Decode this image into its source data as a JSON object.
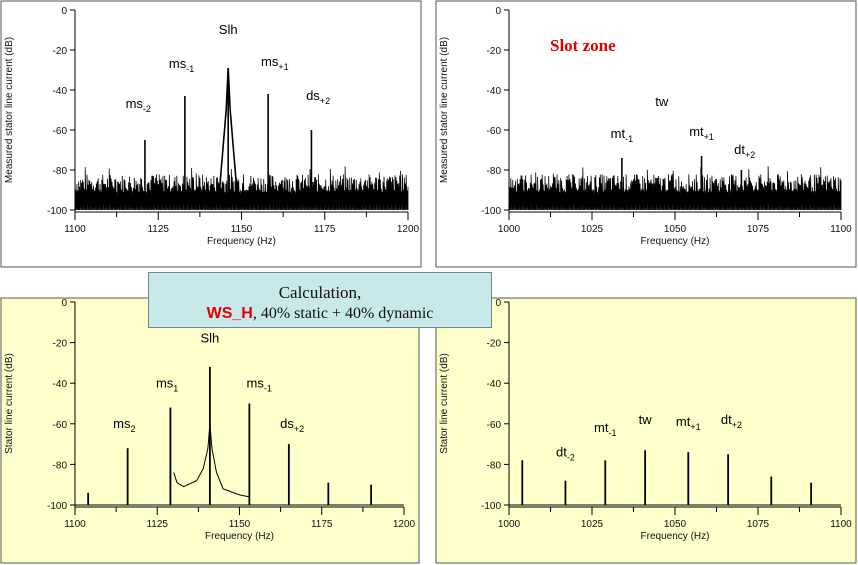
{
  "chart_data": [
    {
      "type": "line",
      "panel": "top-left",
      "xlabel": "Frequency (Hz)",
      "ylabel": "Measured stator line current (dB)",
      "xlim": [
        1100,
        1200
      ],
      "ylim": [
        -100,
        0
      ],
      "xticks": [
        "1100",
        "1125",
        "1150",
        "1175",
        "1200"
      ],
      "yticks": [
        "0",
        "-20",
        "-40",
        "-60",
        "-80",
        "-100"
      ],
      "noise_floor": -90,
      "background": "#ffffff",
      "peaks": [
        {
          "x": 1121,
          "y": -65
        },
        {
          "x": 1133,
          "y": -43
        },
        {
          "x": 1146,
          "y": -29
        },
        {
          "x": 1158,
          "y": -42
        },
        {
          "x": 1171,
          "y": -60
        }
      ],
      "annotations": [
        {
          "base": "ms",
          "sub": "-2",
          "x": 1119,
          "y": -49
        },
        {
          "base": "ms",
          "sub": "-1",
          "x": 1132,
          "y": -29
        },
        {
          "base": "Slh",
          "sub": "",
          "x": 1146,
          "y": -12
        },
        {
          "base": "ms",
          "sub": "+1",
          "x": 1160,
          "y": -28
        },
        {
          "base": "ds",
          "sub": "+2",
          "x": 1173,
          "y": -45
        }
      ]
    },
    {
      "type": "line",
      "panel": "top-right",
      "xlabel": "Frequency (Hz)",
      "ylabel": "Measured stator line current (dB)",
      "xlim": [
        1000,
        1100
      ],
      "ylim": [
        -100,
        0
      ],
      "xticks": [
        "1000",
        "1025",
        "1050",
        "1075",
        "1100"
      ],
      "yticks": [
        "0",
        "-20",
        "-40",
        "-60",
        "-80",
        "-100"
      ],
      "noise_floor": -90,
      "background": "#ffffff",
      "title": "Slot zone",
      "title_color": "#e00000",
      "peaks": [
        {
          "x": 1034,
          "y": -74
        },
        {
          "x": 1058,
          "y": -73
        },
        {
          "x": 1070,
          "y": -80
        }
      ],
      "annotations": [
        {
          "base": "tw",
          "sub": "",
          "x": 1046,
          "y": -48
        },
        {
          "base": "mt",
          "sub": "-1",
          "x": 1034,
          "y": -64
        },
        {
          "base": "mt",
          "sub": "+1",
          "x": 1058,
          "y": -63
        },
        {
          "base": "dt",
          "sub": "+2",
          "x": 1071,
          "y": -72
        }
      ]
    },
    {
      "type": "line",
      "panel": "bottom-left",
      "xlabel": "Frequency (Hz)",
      "ylabel": "Stator line current (dB)",
      "xlim": [
        1100,
        1200
      ],
      "ylim": [
        -100,
        0
      ],
      "xticks": [
        "1100",
        "1125",
        "1150",
        "1175",
        "1200"
      ],
      "yticks": [
        "0",
        "-20",
        "-40",
        "-60",
        "-80",
        "-100"
      ],
      "background": "#ffffcc",
      "baseline": -100,
      "peaks": [
        {
          "x": 1104,
          "y": -94
        },
        {
          "x": 1116,
          "y": -72
        },
        {
          "x": 1129,
          "y": -52
        },
        {
          "x": 1141,
          "y": -32
        },
        {
          "x": 1153,
          "y": -50
        },
        {
          "x": 1165,
          "y": -70
        },
        {
          "x": 1177,
          "y": -89
        },
        {
          "x": 1190,
          "y": -90
        }
      ],
      "skirt": {
        "from": 1130,
        "center": 1141,
        "to": 1153,
        "floor": -92
      },
      "annotations": [
        {
          "base": "ms",
          "sub": "2",
          "x": 1115,
          "y": -62
        },
        {
          "base": "ms",
          "sub": "1",
          "x": 1128,
          "y": -42
        },
        {
          "base": "Slh",
          "sub": "",
          "x": 1141,
          "y": -20
        },
        {
          "base": "ms",
          "sub": "-1",
          "x": 1156,
          "y": -42
        },
        {
          "base": "ds",
          "sub": "+2",
          "x": 1166,
          "y": -62
        }
      ]
    },
    {
      "type": "line",
      "panel": "bottom-right",
      "xlabel": "Frequency (Hz)",
      "ylabel": "Stator line current (dB)",
      "xlim": [
        1000,
        1100
      ],
      "ylim": [
        -100,
        0
      ],
      "xticks": [
        "1000",
        "1025",
        "1050",
        "1075",
        "1100"
      ],
      "yticks": [
        "0",
        "-20",
        "-40",
        "-60",
        "-80",
        "-100"
      ],
      "background": "#ffffcc",
      "baseline": -100,
      "peaks": [
        {
          "x": 1004,
          "y": -78
        },
        {
          "x": 1017,
          "y": -88
        },
        {
          "x": 1029,
          "y": -78
        },
        {
          "x": 1041,
          "y": -73
        },
        {
          "x": 1054,
          "y": -74
        },
        {
          "x": 1066,
          "y": -75
        },
        {
          "x": 1079,
          "y": -86
        },
        {
          "x": 1091,
          "y": -89
        }
      ],
      "annotations": [
        {
          "base": "dt",
          "sub": "-2",
          "x": 1017,
          "y": -76
        },
        {
          "base": "mt",
          "sub": "-1",
          "x": 1029,
          "y": -64
        },
        {
          "base": "tw",
          "sub": "",
          "x": 1041,
          "y": -60
        },
        {
          "base": "mt",
          "sub": "+1",
          "x": 1054,
          "y": -61
        },
        {
          "base": "dt",
          "sub": "+2",
          "x": 1067,
          "y": -60
        }
      ]
    }
  ],
  "banner": {
    "line1": "Calculation,",
    "highlight": "WS_H",
    "line2_rest": ",  40%  static + 40% dynamic"
  },
  "colors": {
    "trace": "#000000",
    "highlight": "#e00000",
    "banner_bg": "#c8e8ea",
    "bottom_bg": "#ffffcc"
  }
}
